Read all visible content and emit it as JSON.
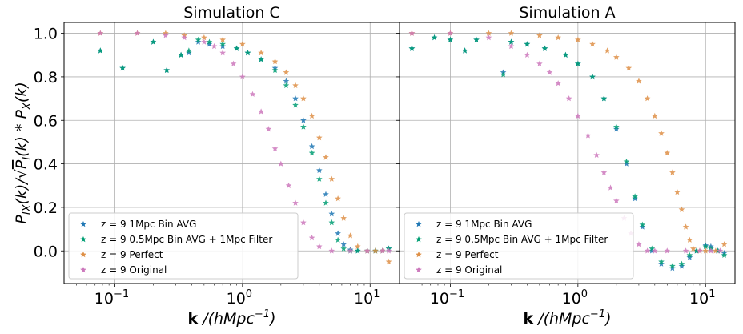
{
  "chart_data": [
    {
      "type": "scatter",
      "title": "Simulation C",
      "xlabel": "k /(hMpc^-1)",
      "ylabel": "P_IX(k)/sqrt(P_I(k)*P_X(k))",
      "xscale": "log",
      "xlim": [
        0.04,
        17
      ],
      "ylim": [
        -0.15,
        1.05
      ],
      "x_ticks": [
        {
          "value": 0.1,
          "label": "10^-1"
        },
        {
          "value": 1,
          "label": "10^0"
        },
        {
          "value": 10,
          "label": "10^1"
        }
      ],
      "y_ticks": [
        0.0,
        0.2,
        0.4,
        0.6,
        0.8,
        1.0
      ],
      "grid": true,
      "legend_position": "lower-left",
      "marker": "star",
      "series": [
        {
          "name": "z = 9  1Mpc Bin AVG",
          "color": "#1f77b4",
          "points": [
            [
              0.077,
              0.92
            ],
            [
              0.115,
              0.84
            ],
            [
              0.2,
              0.96
            ],
            [
              0.255,
              0.83
            ],
            [
              0.33,
              0.9
            ],
            [
              0.38,
              0.91
            ],
            [
              0.45,
              0.96
            ],
            [
              0.55,
              0.95
            ],
            [
              0.7,
              0.94
            ],
            [
              0.9,
              0.93
            ],
            [
              1.1,
              0.91
            ],
            [
              1.4,
              0.88
            ],
            [
              1.8,
              0.84
            ],
            [
              2.2,
              0.78
            ],
            [
              2.6,
              0.7
            ],
            [
              3.0,
              0.6
            ],
            [
              3.5,
              0.48
            ],
            [
              4.0,
              0.37
            ],
            [
              4.5,
              0.26
            ],
            [
              5.0,
              0.17
            ],
            [
              5.6,
              0.08
            ],
            [
              6.2,
              0.03
            ],
            [
              7,
              0.005
            ],
            [
              8,
              0.0
            ],
            [
              9.5,
              0.0
            ],
            [
              11,
              0.0
            ],
            [
              12.5,
              0.0
            ],
            [
              14,
              0.01
            ]
          ]
        },
        {
          "name": "z = 9  0.5Mpc Bin AVG + 1Mpc Filter",
          "color": "#009e73",
          "points": [
            [
              0.077,
              0.92
            ],
            [
              0.115,
              0.84
            ],
            [
              0.2,
              0.96
            ],
            [
              0.255,
              0.83
            ],
            [
              0.33,
              0.9
            ],
            [
              0.38,
              0.92
            ],
            [
              0.45,
              0.97
            ],
            [
              0.55,
              0.96
            ],
            [
              0.7,
              0.95
            ],
            [
              0.9,
              0.93
            ],
            [
              1.1,
              0.91
            ],
            [
              1.4,
              0.88
            ],
            [
              1.8,
              0.83
            ],
            [
              2.2,
              0.76
            ],
            [
              2.6,
              0.67
            ],
            [
              3.0,
              0.57
            ],
            [
              3.5,
              0.45
            ],
            [
              4.0,
              0.33
            ],
            [
              4.5,
              0.22
            ],
            [
              5.0,
              0.13
            ],
            [
              5.6,
              0.05
            ],
            [
              6.2,
              0.01
            ],
            [
              7,
              0.0
            ],
            [
              8,
              0.0
            ],
            [
              9.5,
              0.0
            ],
            [
              11,
              0.0
            ],
            [
              12.5,
              0.0
            ],
            [
              14,
              0.01
            ]
          ]
        },
        {
          "name": "z = 9  Perfect",
          "color": "#de8f46",
          "points": [
            [
              0.077,
              1.0
            ],
            [
              0.15,
              1.0
            ],
            [
              0.25,
              1.0
            ],
            [
              0.35,
              0.99
            ],
            [
              0.5,
              0.98
            ],
            [
              0.7,
              0.97
            ],
            [
              1.0,
              0.95
            ],
            [
              1.4,
              0.91
            ],
            [
              1.8,
              0.87
            ],
            [
              2.2,
              0.82
            ],
            [
              2.6,
              0.76
            ],
            [
              3.0,
              0.7
            ],
            [
              3.5,
              0.62
            ],
            [
              4.0,
              0.52
            ],
            [
              4.5,
              0.43
            ],
            [
              5.0,
              0.33
            ],
            [
              5.6,
              0.24
            ],
            [
              6.2,
              0.15
            ],
            [
              7,
              0.07
            ],
            [
              8,
              0.02
            ],
            [
              9.5,
              0.0
            ],
            [
              11,
              0.0
            ],
            [
              12.5,
              0.0
            ],
            [
              14,
              -0.05
            ]
          ]
        },
        {
          "name": "z = 9  Original",
          "color": "#cc78bc",
          "points": [
            [
              0.077,
              1.0
            ],
            [
              0.15,
              1.0
            ],
            [
              0.25,
              0.99
            ],
            [
              0.35,
              0.98
            ],
            [
              0.5,
              0.96
            ],
            [
              0.6,
              0.94
            ],
            [
              0.7,
              0.91
            ],
            [
              0.85,
              0.86
            ],
            [
              1.0,
              0.8
            ],
            [
              1.2,
              0.72
            ],
            [
              1.4,
              0.64
            ],
            [
              1.6,
              0.56
            ],
            [
              1.8,
              0.47
            ],
            [
              2.0,
              0.4
            ],
            [
              2.3,
              0.3
            ],
            [
              2.6,
              0.22
            ],
            [
              3.0,
              0.13
            ],
            [
              3.5,
              0.06
            ],
            [
              4.0,
              0.02
            ],
            [
              5,
              0.0
            ],
            [
              7,
              0.0
            ],
            [
              9.5,
              0.0
            ],
            [
              12.5,
              0.0
            ],
            [
              14,
              0.0
            ]
          ]
        }
      ]
    },
    {
      "type": "scatter",
      "title": "Simulation A",
      "xlabel": "k /(hMpc^-1)",
      "xscale": "log",
      "xlim": [
        0.04,
        17
      ],
      "ylim": [
        -0.15,
        1.05
      ],
      "x_ticks": [
        {
          "value": 0.1,
          "label": "10^-1"
        },
        {
          "value": 1,
          "label": "10^0"
        },
        {
          "value": 10,
          "label": "10^1"
        }
      ],
      "y_ticks": [
        0.0,
        0.2,
        0.4,
        0.6,
        0.8,
        1.0
      ],
      "grid": true,
      "legend_position": "lower-left",
      "marker": "star",
      "series": [
        {
          "name": "z = 9  1Mpc Bin AVG",
          "color": "#1f77b4",
          "points": [
            [
              0.05,
              0.93
            ],
            [
              0.075,
              0.98
            ],
            [
              0.1,
              0.97
            ],
            [
              0.13,
              0.92
            ],
            [
              0.16,
              0.97
            ],
            [
              0.26,
              0.82
            ],
            [
              0.3,
              0.96
            ],
            [
              0.4,
              0.95
            ],
            [
              0.55,
              0.93
            ],
            [
              0.8,
              0.9
            ],
            [
              1.0,
              0.86
            ],
            [
              1.3,
              0.8
            ],
            [
              1.6,
              0.7
            ],
            [
              2.0,
              0.56
            ],
            [
              2.4,
              0.4
            ],
            [
              2.8,
              0.24
            ],
            [
              3.2,
              0.11
            ],
            [
              3.8,
              0.0
            ],
            [
              4.5,
              -0.06
            ],
            [
              5.5,
              -0.08
            ],
            [
              6.5,
              -0.07
            ],
            [
              7.5,
              -0.03
            ],
            [
              8.5,
              0.0
            ],
            [
              10,
              0.025
            ],
            [
              11,
              0.02
            ],
            [
              12.5,
              0.0
            ],
            [
              14,
              -0.01
            ]
          ]
        },
        {
          "name": "z = 9  0.5Mpc Bin AVG + 1Mpc Filter",
          "color": "#009e73",
          "points": [
            [
              0.05,
              0.93
            ],
            [
              0.075,
              0.98
            ],
            [
              0.1,
              0.97
            ],
            [
              0.13,
              0.92
            ],
            [
              0.16,
              0.97
            ],
            [
              0.26,
              0.81
            ],
            [
              0.3,
              0.96
            ],
            [
              0.4,
              0.95
            ],
            [
              0.55,
              0.93
            ],
            [
              0.8,
              0.9
            ],
            [
              1.0,
              0.86
            ],
            [
              1.3,
              0.8
            ],
            [
              1.6,
              0.7
            ],
            [
              2.0,
              0.57
            ],
            [
              2.4,
              0.41
            ],
            [
              2.8,
              0.25
            ],
            [
              3.2,
              0.12
            ],
            [
              3.8,
              0.01
            ],
            [
              4.5,
              -0.05
            ],
            [
              5.5,
              -0.07
            ],
            [
              6.5,
              -0.06
            ],
            [
              7.5,
              -0.02
            ],
            [
              8.5,
              0.0
            ],
            [
              10,
              0.02
            ],
            [
              11,
              0.01
            ],
            [
              12.5,
              0.0
            ],
            [
              14,
              -0.02
            ]
          ]
        },
        {
          "name": "z = 9  Perfect",
          "color": "#de8f46",
          "points": [
            [
              0.05,
              1.0
            ],
            [
              0.1,
              1.0
            ],
            [
              0.2,
              1.0
            ],
            [
              0.3,
              1.0
            ],
            [
              0.5,
              0.99
            ],
            [
              0.7,
              0.98
            ],
            [
              1.0,
              0.97
            ],
            [
              1.3,
              0.95
            ],
            [
              1.7,
              0.92
            ],
            [
              2.0,
              0.89
            ],
            [
              2.5,
              0.84
            ],
            [
              3.0,
              0.78
            ],
            [
              3.5,
              0.7
            ],
            [
              4.0,
              0.62
            ],
            [
              4.5,
              0.54
            ],
            [
              5.0,
              0.45
            ],
            [
              5.5,
              0.36
            ],
            [
              6.0,
              0.27
            ],
            [
              6.5,
              0.19
            ],
            [
              7.0,
              0.11
            ],
            [
              7.5,
              0.05
            ],
            [
              8.0,
              0.01
            ],
            [
              9.0,
              0.0
            ],
            [
              10,
              0.0
            ],
            [
              12,
              0.0
            ],
            [
              14,
              0.03
            ]
          ]
        },
        {
          "name": "z = 9  Original",
          "color": "#cc78bc",
          "points": [
            [
              0.05,
              1.0
            ],
            [
              0.1,
              1.0
            ],
            [
              0.2,
              0.98
            ],
            [
              0.3,
              0.94
            ],
            [
              0.4,
              0.9
            ],
            [
              0.5,
              0.86
            ],
            [
              0.6,
              0.82
            ],
            [
              0.7,
              0.77
            ],
            [
              0.85,
              0.7
            ],
            [
              1.0,
              0.62
            ],
            [
              1.2,
              0.53
            ],
            [
              1.4,
              0.44
            ],
            [
              1.6,
              0.36
            ],
            [
              1.8,
              0.29
            ],
            [
              2.0,
              0.23
            ],
            [
              2.3,
              0.15
            ],
            [
              2.6,
              0.08
            ],
            [
              3.0,
              0.03
            ],
            [
              3.5,
              0.0
            ],
            [
              4,
              0.0
            ],
            [
              5,
              0.0
            ],
            [
              7,
              0.0
            ],
            [
              9,
              0.0
            ],
            [
              11,
              0.0
            ],
            [
              13,
              0.0
            ]
          ]
        }
      ]
    }
  ]
}
